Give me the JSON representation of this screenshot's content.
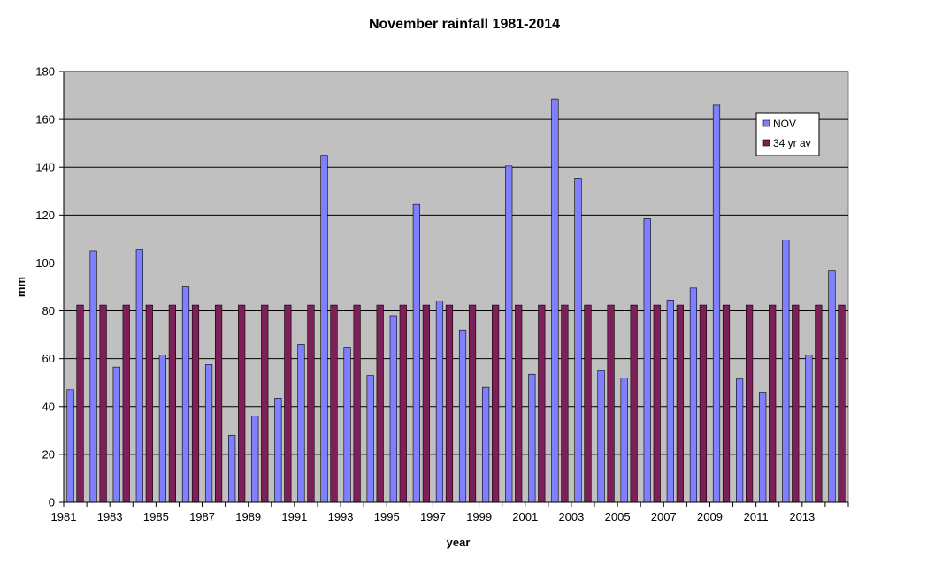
{
  "chart_data": {
    "type": "bar",
    "title": "November rainfall 1981-2014",
    "xlabel": "year",
    "ylabel": "mm",
    "ylim": [
      0,
      180
    ],
    "yticks": [
      "0",
      "20",
      "40",
      "60",
      "80",
      "100",
      "120",
      "140",
      "160",
      "180"
    ],
    "categories": [
      "1981",
      "1982",
      "1983",
      "1984",
      "1985",
      "1986",
      "1987",
      "1988",
      "1989",
      "1990",
      "1991",
      "1992",
      "1993",
      "1994",
      "1995",
      "1996",
      "1997",
      "1998",
      "1999",
      "2000",
      "2001",
      "2002",
      "2003",
      "2004",
      "2005",
      "2006",
      "2007",
      "2008",
      "2009",
      "2010",
      "2011",
      "2012",
      "2013",
      "2014"
    ],
    "xtick_labels": [
      "1981",
      "1983",
      "1985",
      "1987",
      "1989",
      "1991",
      "1993",
      "1995",
      "1997",
      "1999",
      "2001",
      "2003",
      "2005",
      "2007",
      "2009",
      "2011",
      "2013"
    ],
    "series": [
      {
        "name": "NOV",
        "color": "#8080ff",
        "values": [
          47,
          105,
          56.5,
          105.5,
          61.5,
          90,
          57.5,
          28,
          36,
          43.5,
          66,
          145,
          64.5,
          53,
          78,
          124.5,
          84,
          72,
          48,
          140.5,
          53.5,
          168.5,
          135.5,
          55,
          52,
          118.5,
          84.5,
          89.5,
          166,
          51.5,
          46,
          109.5,
          61.5,
          97
        ]
      },
      {
        "name": "34 yr av",
        "color": "#7f1f5a",
        "values": [
          82.4,
          82.4,
          82.4,
          82.4,
          82.4,
          82.4,
          82.4,
          82.4,
          82.4,
          82.4,
          82.4,
          82.4,
          82.4,
          82.4,
          82.4,
          82.4,
          82.4,
          82.4,
          82.4,
          82.4,
          82.4,
          82.4,
          82.4,
          82.4,
          82.4,
          82.4,
          82.4,
          82.4,
          82.4,
          82.4,
          82.4,
          82.4,
          82.4,
          82.4
        ]
      }
    ],
    "plot_background": "#c0c0c0",
    "grid": true,
    "legend_position": "top-right"
  }
}
